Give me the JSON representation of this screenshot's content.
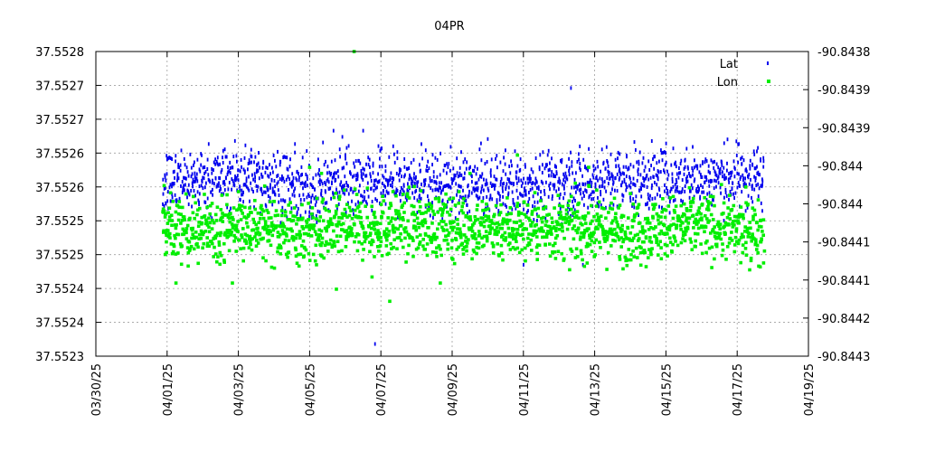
{
  "chart_data": {
    "type": "scatter",
    "title": "04PR",
    "xlabel": "",
    "ylabel": "",
    "y2label": "",
    "grid": true,
    "legend_position": "top-right",
    "x_axis": {
      "range": [
        "03/30/25",
        "04/19/25"
      ],
      "tick_labels": [
        "03/30/25",
        "04/01/25",
        "04/03/25",
        "04/05/25",
        "04/07/25",
        "04/09/25",
        "04/11/25",
        "04/13/25",
        "04/15/25",
        "04/17/25",
        "04/19/25"
      ]
    },
    "y_left": {
      "range": [
        37.5523,
        37.5528
      ],
      "tick_labels": [
        "37.5523",
        "37.5524",
        "37.5524",
        "37.5525",
        "37.5525",
        "37.5526",
        "37.5526",
        "37.5527",
        "37.5527",
        "37.5528"
      ]
    },
    "y_right": {
      "range": [
        -90.8443,
        -90.8438
      ],
      "tick_labels": [
        "-90.8443",
        "-90.8442",
        "-90.8441",
        "-90.8441",
        "-90.844",
        "-90.844",
        "-90.8439",
        "-90.8439",
        "-90.8438"
      ]
    },
    "series": [
      {
        "name": "Lat",
        "axis": "left",
        "color": "#0000ee",
        "marker": "dash",
        "x_start": "03/31/25 21:00",
        "x_end": "04/17/25 18:00",
        "band_center": 37.552585,
        "band_low": 37.55256,
        "band_high": 37.55262,
        "approximate_mean_profile": [
          [
            "04/01/25",
            37.552585
          ],
          [
            "04/02/25",
            37.55259
          ],
          [
            "04/03/25",
            37.552595
          ],
          [
            "04/04/25",
            37.55259
          ],
          [
            "04/05/25",
            37.55257
          ],
          [
            "04/06/25",
            37.55259
          ],
          [
            "04/08/25",
            37.552585
          ],
          [
            "04/09/25",
            37.55258
          ],
          [
            "04/10/25",
            37.55258
          ],
          [
            "04/12/25",
            37.552585
          ],
          [
            "04/14/25",
            37.55259
          ],
          [
            "04/16/25",
            37.55259
          ],
          [
            "04/17/25",
            37.552595
          ]
        ],
        "outliers": [
          {
            "x": "04/05/25 16:00",
            "y": 37.55267
          },
          {
            "x": "04/05/25 22:00",
            "y": 37.55266
          },
          {
            "x": "04/06/25 12:00",
            "y": 37.55267
          },
          {
            "x": "04/06/25 00:00",
            "y": 37.55263
          },
          {
            "x": "04/06/25 20:00",
            "y": 37.55232
          },
          {
            "x": "04/07/25 00:00",
            "y": 37.55264
          },
          {
            "x": "04/11/25 00:00",
            "y": 37.55245
          },
          {
            "x": "04/12/25 08:00",
            "y": 37.55274
          },
          {
            "x": "04/12/25 20:00",
            "y": 37.55264
          },
          {
            "x": "04/12/25 16:00",
            "y": 37.55245
          }
        ]
      },
      {
        "name": "Lon",
        "axis": "right",
        "color": "#00ee00",
        "marker": "square",
        "x_start": "03/31/25 21:00",
        "x_end": "04/17/25 18:00",
        "band_center": -90.84409,
        "band_low": -90.84412,
        "band_high": -90.84406,
        "approximate_mean_profile": [
          [
            "04/01/25",
            -90.84409
          ],
          [
            "04/02/25",
            -90.844095
          ],
          [
            "04/03/25",
            -90.844085
          ],
          [
            "04/04/25",
            -90.84409
          ],
          [
            "04/05/25",
            -90.8441
          ],
          [
            "04/06/25",
            -90.84409
          ],
          [
            "04/08/25",
            -90.844085
          ],
          [
            "04/10/25",
            -90.84409
          ],
          [
            "04/12/25",
            -90.84409
          ],
          [
            "04/14/25",
            -90.844095
          ],
          [
            "04/16/25",
            -90.844085
          ],
          [
            "04/17/25",
            -90.844095
          ]
        ],
        "outliers": [
          {
            "x": "03/31/25 22:00",
            "y": -90.84402
          },
          {
            "x": "04/01/25 06:00",
            "y": -90.84418
          },
          {
            "x": "04/02/25 20:00",
            "y": -90.84418
          },
          {
            "x": "04/05/25 00:00",
            "y": -90.84399
          },
          {
            "x": "04/05/25 08:00",
            "y": -90.844
          },
          {
            "x": "04/05/25 18:00",
            "y": -90.84419
          },
          {
            "x": "04/06/25 06:00",
            "y": -90.8438
          },
          {
            "x": "04/06/25 18:00",
            "y": -90.84417
          },
          {
            "x": "04/07/25 06:00",
            "y": -90.84421
          },
          {
            "x": "04/08/25 16:00",
            "y": -90.84418
          },
          {
            "x": "04/09/25 12:00",
            "y": -90.844
          },
          {
            "x": "04/10/25 20:00",
            "y": -90.84397
          },
          {
            "x": "04/12/25 20:00",
            "y": -90.84402
          },
          {
            "x": "04/12/25 20:00",
            "y": -90.84399
          }
        ]
      }
    ]
  }
}
